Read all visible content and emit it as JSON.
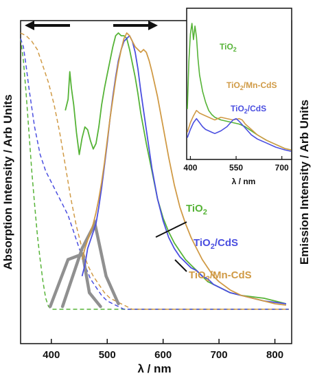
{
  "chart_data": [
    {
      "type": "line",
      "xlabel": "λ / nm",
      "ylabel_left": "Absorption Intensity / Arb Units",
      "ylabel_right": "Emission Intensity / Arb Units",
      "xlim": [
        345,
        830
      ],
      "ylim": [
        0,
        1
      ],
      "xticks": [
        "400",
        "500",
        "600",
        "700",
        "800"
      ],
      "arrows": [
        "left (absorption)",
        "right (emission)"
      ],
      "colors": {
        "TiO2": "#55b336",
        "TiO2/CdS": "#4a4ee0",
        "TiO2/Mn-CdS": "#d09a45",
        "excitation": "#909090"
      },
      "series": [
        {
          "name": "TiO2",
          "kind": "emission",
          "color": "#55b336",
          "x": [
            425,
            430,
            433,
            436,
            440,
            445,
            450,
            455,
            460,
            465,
            470,
            475,
            480,
            485,
            490,
            495,
            500,
            505,
            510,
            515,
            520,
            525,
            530,
            535,
            540,
            545,
            550,
            555,
            560,
            570,
            580,
            590,
            600,
            610,
            620,
            630,
            640,
            650,
            660,
            670,
            680,
            690,
            700,
            720,
            740,
            760,
            780,
            800,
            820
          ],
          "y": [
            0.72,
            0.76,
            0.86,
            0.8,
            0.74,
            0.64,
            0.56,
            0.62,
            0.66,
            0.65,
            0.61,
            0.58,
            0.6,
            0.66,
            0.74,
            0.8,
            0.85,
            0.9,
            0.95,
            0.99,
            1.0,
            0.99,
            0.99,
            0.98,
            0.94,
            0.89,
            0.84,
            0.78,
            0.71,
            0.6,
            0.5,
            0.4,
            0.33,
            0.28,
            0.24,
            0.21,
            0.18,
            0.16,
            0.14,
            0.12,
            0.1,
            0.09,
            0.08,
            0.06,
            0.05,
            0.045,
            0.04,
            0.03,
            0.02
          ]
        },
        {
          "name": "TiO2/CdS",
          "kind": "emission",
          "color": "#4a4ee0",
          "x": [
            455,
            460,
            465,
            470,
            475,
            480,
            485,
            490,
            495,
            500,
            505,
            510,
            515,
            520,
            525,
            530,
            535,
            540,
            545,
            550,
            555,
            560,
            570,
            580,
            590,
            600,
            610,
            620,
            630,
            640,
            650,
            660,
            670,
            680,
            690,
            700,
            720,
            740,
            760,
            780,
            800,
            820
          ],
          "y": [
            0.12,
            0.16,
            0.22,
            0.25,
            0.28,
            0.31,
            0.37,
            0.44,
            0.52,
            0.6,
            0.69,
            0.77,
            0.84,
            0.9,
            0.94,
            0.97,
            0.98,
            0.99,
            0.97,
            0.93,
            0.87,
            0.79,
            0.65,
            0.51,
            0.4,
            0.32,
            0.26,
            0.22,
            0.19,
            0.17,
            0.15,
            0.14,
            0.12,
            0.11,
            0.09,
            0.08,
            0.06,
            0.05,
            0.04,
            0.03,
            0.025,
            0.02
          ]
        },
        {
          "name": "TiO2/Mn-CdS",
          "kind": "emission",
          "color": "#d09a45",
          "x": [
            455,
            460,
            465,
            470,
            475,
            480,
            485,
            490,
            495,
            500,
            505,
            510,
            515,
            520,
            525,
            530,
            535,
            540,
            545,
            550,
            555,
            560,
            565,
            570,
            575,
            580,
            590,
            600,
            610,
            620,
            630,
            640,
            650,
            660,
            670,
            680,
            690,
            700,
            720,
            740,
            760,
            780,
            800,
            820
          ],
          "y": [
            0.18,
            0.22,
            0.25,
            0.28,
            0.31,
            0.35,
            0.4,
            0.46,
            0.53,
            0.61,
            0.69,
            0.76,
            0.83,
            0.89,
            0.94,
            0.98,
            1.0,
            0.99,
            0.97,
            0.95,
            0.94,
            0.93,
            0.94,
            0.93,
            0.9,
            0.86,
            0.77,
            0.66,
            0.55,
            0.45,
            0.37,
            0.31,
            0.26,
            0.22,
            0.18,
            0.15,
            0.12,
            0.1,
            0.07,
            0.05,
            0.04,
            0.03,
            0.02,
            0.015
          ]
        },
        {
          "name": "TiO2",
          "kind": "absorption",
          "color": "#55b336",
          "x": [
            345,
            350,
            355,
            360,
            365,
            370,
            375,
            380,
            385,
            390,
            395,
            400,
            410,
            420,
            440,
            460,
            480,
            500,
            600,
            700,
            800,
            825
          ],
          "y": [
            0.98,
            0.9,
            0.78,
            0.64,
            0.5,
            0.38,
            0.27,
            0.18,
            0.1,
            0.04,
            0.01,
            0.0,
            0.0,
            0.0,
            0.0,
            0.0,
            0.0,
            0.0,
            0.0,
            0.0,
            0.0,
            0.0
          ]
        },
        {
          "name": "TiO2/CdS",
          "kind": "absorption",
          "color": "#4a4ee0",
          "x": [
            345,
            350,
            355,
            360,
            370,
            380,
            390,
            400,
            410,
            420,
            430,
            440,
            450,
            460,
            470,
            480,
            490,
            500,
            510,
            520,
            530,
            540,
            600,
            700,
            800,
            825
          ],
          "y": [
            0.98,
            0.95,
            0.88,
            0.8,
            0.66,
            0.56,
            0.5,
            0.46,
            0.42,
            0.38,
            0.34,
            0.28,
            0.22,
            0.16,
            0.11,
            0.08,
            0.05,
            0.03,
            0.02,
            0.01,
            0.0,
            0.0,
            0.0,
            0.0,
            0.0,
            0.0
          ]
        },
        {
          "name": "TiO2/Mn-CdS",
          "kind": "absorption",
          "color": "#d09a45",
          "x": [
            345,
            355,
            365,
            375,
            385,
            395,
            405,
            415,
            425,
            435,
            445,
            455,
            465,
            475,
            485,
            495,
            505,
            515,
            525,
            535,
            545,
            600,
            700,
            800,
            825
          ],
          "y": [
            1.0,
            0.99,
            0.97,
            0.94,
            0.88,
            0.82,
            0.74,
            0.64,
            0.52,
            0.4,
            0.3,
            0.22,
            0.16,
            0.12,
            0.09,
            0.06,
            0.04,
            0.03,
            0.02,
            0.01,
            0.0,
            0.0,
            0.0,
            0.0,
            0.0
          ]
        },
        {
          "name": "excitation peak 1",
          "kind": "excitation",
          "color": "#909090",
          "x": [
            398,
            430,
            456,
            468,
            488
          ],
          "y": [
            0.01,
            0.18,
            0.2,
            0.06,
            0.01
          ]
        },
        {
          "name": "excitation peak 2",
          "kind": "excitation",
          "color": "#909090",
          "x": [
            420,
            455,
            478,
            498,
            520
          ],
          "y": [
            0.01,
            0.22,
            0.31,
            0.12,
            0.02
          ]
        }
      ],
      "annotations": [
        {
          "text": "TiO2",
          "points_to": 598
        },
        {
          "text": "TiO2/CdS",
          "points_to": 625
        },
        {
          "text": "TiO2/Mn-CdS",
          "points_to": 645
        }
      ]
    },
    {
      "type": "line",
      "inset": true,
      "xlabel": "λ / nm",
      "xlim": [
        390,
        730
      ],
      "xticks": [
        "400",
        "550",
        "700"
      ],
      "ylim": [
        0,
        1
      ],
      "series": [
        {
          "name": "TiO2",
          "color": "#55b336",
          "x": [
            390,
            395,
            400,
            405,
            410,
            415,
            420,
            425,
            430,
            440,
            450,
            460,
            470,
            480,
            490,
            500,
            520,
            540,
            560,
            580,
            600,
            620,
            650,
            680,
            710,
            730
          ],
          "y": [
            0.35,
            0.7,
            0.9,
            0.98,
            0.86,
            0.96,
            0.88,
            0.72,
            0.6,
            0.48,
            0.4,
            0.34,
            0.31,
            0.29,
            0.28,
            0.27,
            0.26,
            0.25,
            0.24,
            0.22,
            0.19,
            0.16,
            0.12,
            0.09,
            0.06,
            0.05
          ]
        },
        {
          "name": "TiO2/Mn-CdS",
          "color": "#d09a45",
          "x": [
            390,
            400,
            410,
            420,
            430,
            440,
            450,
            460,
            470,
            480,
            490,
            500,
            520,
            540,
            560,
            570,
            580,
            600,
            620,
            650,
            680,
            710,
            730
          ],
          "y": [
            0.18,
            0.25,
            0.3,
            0.34,
            0.32,
            0.31,
            0.3,
            0.29,
            0.28,
            0.27,
            0.28,
            0.29,
            0.28,
            0.27,
            0.28,
            0.27,
            0.24,
            0.2,
            0.16,
            0.12,
            0.09,
            0.06,
            0.05
          ]
        },
        {
          "name": "TiO2/CdS",
          "color": "#4a4ee0",
          "x": [
            390,
            400,
            410,
            420,
            430,
            440,
            450,
            460,
            470,
            480,
            490,
            500,
            520,
            540,
            550,
            560,
            580,
            600,
            620,
            650,
            680,
            710,
            730
          ],
          "y": [
            0.14,
            0.2,
            0.25,
            0.28,
            0.25,
            0.22,
            0.2,
            0.19,
            0.18,
            0.17,
            0.18,
            0.19,
            0.22,
            0.27,
            0.28,
            0.26,
            0.21,
            0.16,
            0.13,
            0.1,
            0.07,
            0.05,
            0.04
          ]
        }
      ]
    }
  ]
}
